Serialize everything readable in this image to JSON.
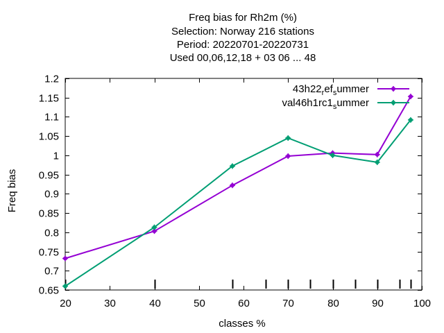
{
  "chart_data": {
    "type": "line",
    "title_lines": [
      "Freq bias  for Rh2m (%)",
      "Selection: Norway    216 stations",
      "Period: 20220701-20220731",
      "Used  00,06,12,18  + 03 06 ... 48"
    ],
    "xlabel": "classes %",
    "ylabel": "Freq bias",
    "xlim": [
      20,
      100
    ],
    "ylim": [
      0.65,
      1.2
    ],
    "xticks": [
      20,
      30,
      40,
      50,
      60,
      70,
      80,
      90,
      100
    ],
    "yticks": [
      0.65,
      0.7,
      0.75,
      0.8,
      0.85,
      0.9,
      0.95,
      1,
      1.05,
      1.1,
      1.15,
      1.2
    ],
    "ytick_labels": [
      "0.65",
      "0.7",
      "0.75",
      "0.8",
      "0.85",
      "0.9",
      "0.95",
      "1",
      "1.05",
      "1.1",
      "1.15",
      "1.2"
    ],
    "class_markers": [
      20,
      40,
      57.5,
      65,
      70,
      75,
      80,
      85,
      90,
      95,
      97.5
    ],
    "legend_position": "top-right",
    "series": [
      {
        "name": "43h22_ref_summer",
        "label_parts": [
          "43h22",
          "r",
          "ef",
          "s",
          "ummer"
        ],
        "color": "#9400d3",
        "x": [
          20,
          40,
          57.5,
          70,
          80,
          90,
          97.5
        ],
        "y": [
          0.732,
          0.803,
          0.922,
          0.998,
          1.006,
          1.002,
          1.153
        ]
      },
      {
        "name": "val46h1rc1_summer",
        "label_parts": [
          "val46h1rc1",
          "s",
          "ummer"
        ],
        "color": "#009e73",
        "x": [
          20,
          40,
          57.5,
          70,
          80,
          90,
          97.5
        ],
        "y": [
          0.66,
          0.813,
          0.972,
          1.045,
          1.0,
          0.982,
          1.092
        ]
      }
    ]
  }
}
